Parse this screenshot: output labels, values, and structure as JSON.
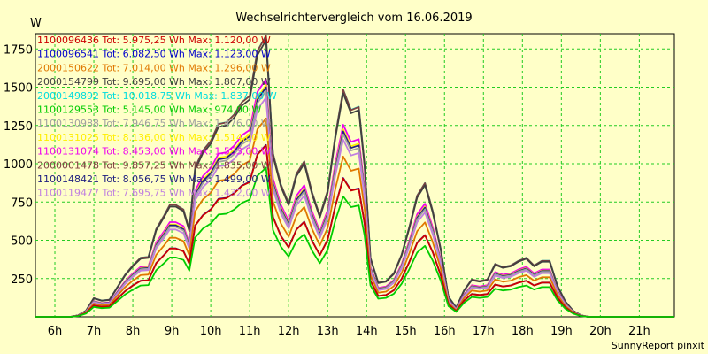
{
  "chart_data": {
    "type": "line",
    "title": "Wechselrichtervergleich vom 16.06.2019",
    "ylabel": "W",
    "credit": "SunnyReport pinxit",
    "xlim": [
      5.5,
      21.9
    ],
    "ylim": [
      0,
      1850
    ],
    "x_ticks": [
      {
        "value": 6,
        "label": "6h"
      },
      {
        "value": 7,
        "label": "7h"
      },
      {
        "value": 8,
        "label": "8h"
      },
      {
        "value": 9,
        "label": "9h"
      },
      {
        "value": 10,
        "label": "10h"
      },
      {
        "value": 11,
        "label": "11h"
      },
      {
        "value": 12,
        "label": "12h"
      },
      {
        "value": 13,
        "label": "13h"
      },
      {
        "value": 14,
        "label": "14h"
      },
      {
        "value": 15,
        "label": "15h"
      },
      {
        "value": 16,
        "label": "16h"
      },
      {
        "value": 17,
        "label": "17h"
      },
      {
        "value": 18,
        "label": "18h"
      },
      {
        "value": 19,
        "label": "19h"
      },
      {
        "value": 20,
        "label": "20h"
      },
      {
        "value": 21,
        "label": "21h"
      }
    ],
    "y_ticks": [
      {
        "value": 250,
        "label": "250"
      },
      {
        "value": 500,
        "label": "500"
      },
      {
        "value": 750,
        "label": "750"
      },
      {
        "value": 1000,
        "label": "1000"
      },
      {
        "value": 1250,
        "label": "1250"
      },
      {
        "value": 1500,
        "label": "1500"
      },
      {
        "value": 1750,
        "label": "1750"
      }
    ],
    "grid": true,
    "legend_position": "top-left",
    "x": [
      5.5,
      6.1,
      6.2,
      6.4,
      6.6,
      6.8,
      7.0,
      7.2,
      7.4,
      7.6,
      7.8,
      8.0,
      8.2,
      8.4,
      8.6,
      8.8,
      8.95,
      9.1,
      9.3,
      9.45,
      9.6,
      9.8,
      10.0,
      10.2,
      10.4,
      10.6,
      10.8,
      11.0,
      11.2,
      11.42,
      11.6,
      11.8,
      12.0,
      12.2,
      12.4,
      12.6,
      12.8,
      13.0,
      13.2,
      13.4,
      13.6,
      13.8,
      13.95,
      14.1,
      14.3,
      14.5,
      14.7,
      14.9,
      15.1,
      15.3,
      15.5,
      15.7,
      15.9,
      16.1,
      16.3,
      16.5,
      16.7,
      16.9,
      17.1,
      17.3,
      17.5,
      17.7,
      17.9,
      18.1,
      18.3,
      18.5,
      18.7,
      18.9,
      19.1,
      19.3,
      19.5,
      19.7,
      19.9,
      20.1,
      20.3,
      20.5,
      20.7,
      20.9,
      21.1,
      21.3,
      21.5,
      21.7,
      21.9
    ],
    "base_profile": [
      0,
      0,
      0,
      0,
      10,
      40,
      120,
      105,
      110,
      190,
      270,
      330,
      380,
      385,
      565,
      650,
      720,
      720,
      690,
      560,
      960,
      1070,
      1130,
      1240,
      1250,
      1300,
      1380,
      1420,
      1710,
      1807,
      1050,
      850,
      730,
      920,
      1000,
      800,
      650,
      810,
      1170,
      1460,
      1330,
      1350,
      980,
      380,
      220,
      230,
      280,
      400,
      580,
      780,
      860,
      680,
      440,
      130,
      60,
      170,
      240,
      230,
      240,
      340,
      320,
      330,
      360,
      380,
      330,
      360,
      360,
      200,
      100,
      40,
      10,
      0,
      0,
      0,
      0,
      0,
      0,
      0,
      0,
      0,
      0,
      0,
      0
    ],
    "series": [
      {
        "name": "1100096436",
        "legend": "1100096436 Tot: 5.975,25 Wh Max: 1.120,00 W",
        "color": "#CC0000",
        "peak": 1120
      },
      {
        "name": "1100096541",
        "legend": "1100096541 Tot: 6.082,50 Wh Max: 1.123,00 W",
        "color": "#0000CC",
        "peak": 1123
      },
      {
        "name": "2000150622",
        "legend": "2000150622 Tot: 7.014,00 Wh Max: 1.296,00 W",
        "color": "#E07800",
        "peak": 1296
      },
      {
        "name": "2000154799",
        "legend": "2000154799 Tot: 9.695,00 Wh Max: 1.807,00 W",
        "color": "#404040",
        "peak": 1807
      },
      {
        "name": "2000149892",
        "legend": "2000149892 Tot: 10.018,75 Wh Max: 1.837,00 W",
        "color": "#00DDDD",
        "peak": 1837
      },
      {
        "name": "1100129553",
        "legend": "1100129553 Tot: 5.145,00 Wh Max: 974,00 W",
        "color": "#00CC00",
        "peak": 974
      },
      {
        "name": "1100130988",
        "legend": "1100130988 Tot: 7.946,75 Wh Max: 1.476,00 W",
        "color": "#A0A0A0",
        "peak": 1476
      },
      {
        "name": "1100131025",
        "legend": "1100131025 Tot: 8.136,00 Wh Max: 1.514,00 W",
        "color": "#FFEE00",
        "peak": 1514
      },
      {
        "name": "1100131074",
        "legend": "1100131074 Tot: 8.453,00 Wh Max: 1.553,00 W",
        "color": "#EE00EE",
        "peak": 1553
      },
      {
        "name": "2000001478",
        "legend": "2000001478 Tot: 9.857,25 Wh Max: 1.835,00 W",
        "color": "#804040",
        "peak": 1835
      },
      {
        "name": "1100148421",
        "legend": "1100148421 Tot: 8.056,75 Wh Max: 1.499,00 W",
        "color": "#202080",
        "peak": 1499
      },
      {
        "name": "1100119477",
        "legend": "1100119477 Tot: 7.695,75 Wh Max: 1.432,00 W",
        "color": "#C080E0",
        "peak": 1432
      }
    ]
  }
}
